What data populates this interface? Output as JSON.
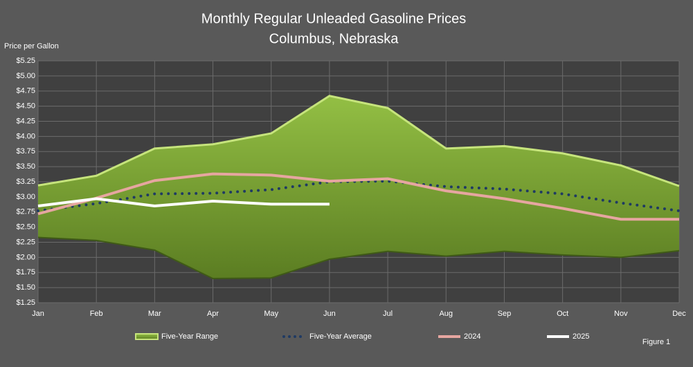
{
  "chart_data": {
    "type": "range-line",
    "title": "Monthly Regular Unleaded Gasoline Prices",
    "subtitle": "Columbus, Nebraska",
    "y_label": "Price per Gallon",
    "annotation": "Figure 1",
    "categories": [
      "Jan",
      "Feb",
      "Mar",
      "Apr",
      "May",
      "Jun",
      "Jul",
      "Aug",
      "Sep",
      "Oct",
      "Nov",
      "Dec"
    ],
    "ylim": [
      1.25,
      5.25
    ],
    "yticks": [
      {
        "value": 1.25,
        "label": "$1.25"
      },
      {
        "value": 1.5,
        "label": "$1.50"
      },
      {
        "value": 1.75,
        "label": "$1.75"
      },
      {
        "value": 2.0,
        "label": "$2.00"
      },
      {
        "value": 2.25,
        "label": "$2.25"
      },
      {
        "value": 2.5,
        "label": "$2.50"
      },
      {
        "value": 2.75,
        "label": "$2.75"
      },
      {
        "value": 3.0,
        "label": "$3.00"
      },
      {
        "value": 3.25,
        "label": "$3.25"
      },
      {
        "value": 3.5,
        "label": "$3.50"
      },
      {
        "value": 3.75,
        "label": "$3.75"
      },
      {
        "value": 4.0,
        "label": "$4.00"
      },
      {
        "value": 4.25,
        "label": "$4.25"
      },
      {
        "value": 4.5,
        "label": "$4.50"
      },
      {
        "value": 4.75,
        "label": "$4.75"
      },
      {
        "value": 5.0,
        "label": "$5.00"
      },
      {
        "value": 5.25,
        "label": "$5.25"
      }
    ],
    "grid": true,
    "legend": "bottom",
    "range": {
      "name": "Five-Year Range",
      "color": "#7fa832",
      "edge_color": "#c6e47c",
      "high": [
        3.19,
        3.35,
        3.8,
        3.87,
        4.05,
        4.67,
        4.47,
        3.8,
        3.84,
        3.72,
        3.52,
        3.18
      ],
      "low": [
        2.33,
        2.28,
        2.12,
        1.65,
        1.66,
        1.97,
        2.1,
        2.02,
        2.1,
        2.04,
        2.0,
        2.11
      ]
    },
    "series": [
      {
        "name": "Five-Year Average",
        "color": "#1f3a63",
        "dotted": true,
        "values": [
          2.77,
          2.89,
          3.05,
          3.06,
          3.12,
          3.25,
          3.26,
          3.17,
          3.13,
          3.05,
          2.9,
          2.77
        ]
      },
      {
        "name": "2024",
        "color": "#e6a6a0",
        "values": [
          2.72,
          2.98,
          3.27,
          3.38,
          3.36,
          3.26,
          3.3,
          3.1,
          2.97,
          2.81,
          2.63,
          2.63
        ]
      },
      {
        "name": "2025",
        "color": "#ffffff",
        "values": [
          2.85,
          2.97,
          2.85,
          2.93,
          2.88,
          2.88,
          null,
          null,
          null,
          null,
          null,
          null
        ]
      }
    ]
  }
}
